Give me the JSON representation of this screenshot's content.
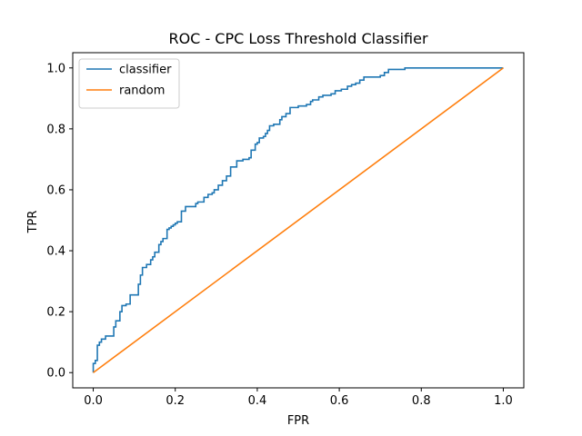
{
  "chart_data": {
    "type": "line",
    "title": "ROC - CPC Loss Threshold Classifier",
    "xlabel": "FPR",
    "ylabel": "TPR",
    "xlim": [
      -0.05,
      1.05
    ],
    "ylim": [
      -0.05,
      1.05
    ],
    "xticks": [
      "0.0",
      "0.2",
      "0.4",
      "0.6",
      "0.8",
      "1.0"
    ],
    "yticks": [
      "0.0",
      "0.2",
      "0.4",
      "0.6",
      "0.8",
      "1.0"
    ],
    "legend_position": "top-left",
    "grid": false,
    "series": [
      {
        "name": "classifier",
        "color": "#1f77b4",
        "step": true,
        "x": [
          0.0,
          0.0,
          0.005,
          0.01,
          0.015,
          0.02,
          0.03,
          0.05,
          0.055,
          0.065,
          0.07,
          0.08,
          0.09,
          0.11,
          0.115,
          0.12,
          0.13,
          0.14,
          0.145,
          0.15,
          0.16,
          0.165,
          0.17,
          0.18,
          0.185,
          0.19,
          0.195,
          0.2,
          0.205,
          0.215,
          0.225,
          0.25,
          0.255,
          0.27,
          0.28,
          0.29,
          0.295,
          0.305,
          0.315,
          0.325,
          0.335,
          0.35,
          0.365,
          0.38,
          0.385,
          0.395,
          0.4,
          0.405,
          0.415,
          0.42,
          0.425,
          0.43,
          0.44,
          0.455,
          0.46,
          0.47,
          0.48,
          0.5,
          0.52,
          0.53,
          0.535,
          0.55,
          0.56,
          0.58,
          0.59,
          0.605,
          0.62,
          0.63,
          0.64,
          0.65,
          0.66,
          0.7,
          0.71,
          0.72,
          0.76,
          0.8,
          0.81,
          0.82,
          0.84,
          0.85,
          0.87,
          0.9,
          0.92,
          0.94,
          0.96,
          0.97,
          0.99,
          1.0
        ],
        "y": [
          0.0,
          0.03,
          0.04,
          0.09,
          0.1,
          0.11,
          0.12,
          0.15,
          0.17,
          0.2,
          0.22,
          0.225,
          0.255,
          0.29,
          0.32,
          0.345,
          0.355,
          0.37,
          0.38,
          0.395,
          0.42,
          0.43,
          0.44,
          0.47,
          0.475,
          0.48,
          0.485,
          0.49,
          0.495,
          0.53,
          0.545,
          0.555,
          0.56,
          0.575,
          0.585,
          0.59,
          0.6,
          0.615,
          0.63,
          0.645,
          0.675,
          0.695,
          0.7,
          0.705,
          0.73,
          0.75,
          0.755,
          0.77,
          0.775,
          0.785,
          0.795,
          0.81,
          0.815,
          0.83,
          0.84,
          0.85,
          0.87,
          0.875,
          0.88,
          0.89,
          0.895,
          0.905,
          0.91,
          0.915,
          0.925,
          0.93,
          0.94,
          0.945,
          0.95,
          0.96,
          0.97,
          0.975,
          0.985,
          0.995,
          1.0,
          1.0,
          1.0,
          1.0,
          1.0,
          1.0,
          1.0,
          1.0,
          1.0,
          1.0,
          1.0,
          1.0,
          1.0,
          1.0
        ]
      },
      {
        "name": "random",
        "color": "#ff7f0e",
        "step": false,
        "x": [
          0.0,
          1.0
        ],
        "y": [
          0.0,
          1.0
        ]
      }
    ]
  }
}
